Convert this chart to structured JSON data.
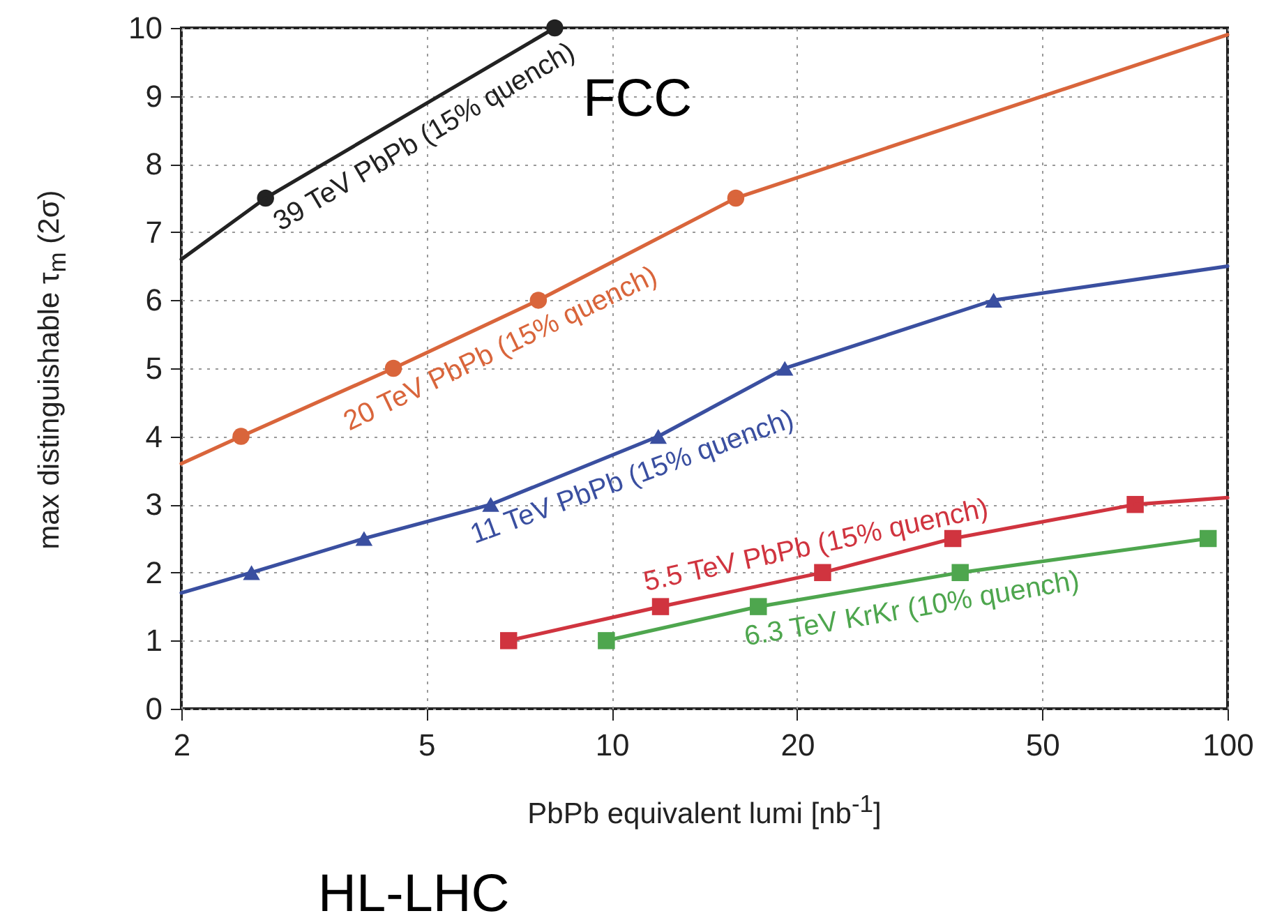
{
  "chart_data": {
    "type": "line",
    "xlabel": "PbPb equivalent lumi [nb$^{-1}$]",
    "ylabel": "max distinguishable τ$_{m}$ (2σ)",
    "log": "x",
    "grid": true,
    "xlim": [
      2,
      100
    ],
    "xticks": [
      2,
      5,
      10,
      20,
      50,
      100
    ],
    "ylim": [
      0,
      10
    ],
    "yticks": [
      0,
      1,
      2,
      3,
      4,
      5,
      6,
      7,
      8,
      9,
      10
    ],
    "annotations": [
      "FCC",
      "HL-LHC"
    ],
    "series": [
      {
        "name": "39 TeV PbPb (15% quench)",
        "color": "#222222",
        "marker": "circle",
        "x": [
          2.74,
          8.08
        ],
        "values": [
          7.5,
          10
        ]
      },
      {
        "color": "#222222",
        "marker": "none",
        "type": "line",
        "x": [
          2,
          2.74
        ],
        "values": [
          6.6,
          7.5
        ]
      },
      {
        "name": "20 TeV PbPb (15% quench)",
        "color": "#d9653b",
        "marker": "circle",
        "x": [
          2.5,
          4.42,
          7.6,
          15.9
        ],
        "values": [
          4,
          5,
          6,
          7.5
        ]
      },
      {
        "color": "#d9653b",
        "marker": "none",
        "type": "line",
        "x": [
          2,
          2.5
        ],
        "values": [
          3.6,
          4
        ]
      },
      {
        "color": "#d9653b",
        "marker": "none",
        "type": "line",
        "x": [
          15.9,
          100
        ],
        "values": [
          7.5,
          9.9
        ]
      },
      {
        "name": "11 TeV PbPb (15% quench)",
        "color": "#3a4fa0",
        "marker": "triangle",
        "x": [
          2.6,
          3.96,
          6.36,
          11.9,
          19.1,
          41.7
        ],
        "values": [
          2,
          2.5,
          3,
          4,
          5,
          6
        ]
      },
      {
        "color": "#3a4fa0",
        "marker": "none",
        "type": "line",
        "x": [
          2,
          2.6
        ],
        "values": [
          1.7,
          2
        ]
      },
      {
        "color": "#3a4fa0",
        "marker": "none",
        "type": "line",
        "x": [
          41.7,
          100
        ],
        "values": [
          6,
          6.5
        ]
      },
      {
        "name": "5.5 TeV PbPb (15% quench)",
        "color": "#d0343f",
        "marker": "square",
        "x": [
          6.8,
          12,
          22,
          35.8,
          70.8
        ],
        "values": [
          1,
          1.5,
          2,
          2.5,
          3
        ]
      },
      {
        "color": "#d0343f",
        "marker": "none",
        "type": "line",
        "x": [
          70.8,
          100
        ],
        "values": [
          3,
          3.1
        ]
      },
      {
        "name": "6.3 TeV KrKr (10% quench)",
        "color": "#4ea64e",
        "marker": "square",
        "x": [
          9.8,
          17.3,
          36.8,
          93
        ],
        "values": [
          1,
          1.5,
          2,
          2.5
        ]
      }
    ]
  }
}
